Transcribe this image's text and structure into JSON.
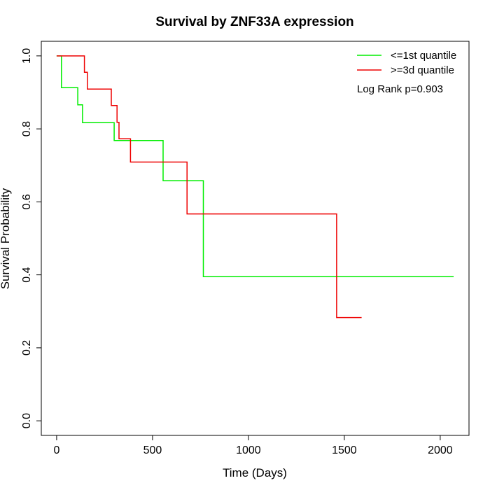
{
  "chart_data": {
    "type": "line",
    "step": true,
    "title": "Survival by ZNF33A expression",
    "xlabel": "Time (Days)",
    "ylabel": "Survival Probability",
    "xlim": [
      -80,
      2150
    ],
    "ylim": [
      -0.04,
      1.04
    ],
    "xticks": [
      0,
      500,
      1000,
      1500,
      2000
    ],
    "xtick_labels": [
      "0",
      "500",
      "1000",
      "1500",
      "2000"
    ],
    "yticks": [
      0.0,
      0.2,
      0.4,
      0.6,
      0.8,
      1.0
    ],
    "ytick_labels": [
      "0.0",
      "0.2",
      "0.4",
      "0.6",
      "0.8",
      "1.0"
    ],
    "legend_position": "top-right",
    "annotation": "Log Rank p=0.903",
    "series": [
      {
        "name": "<=1st quantile",
        "color": "#00ee00",
        "x": [
          0,
          25,
          25,
          110,
          110,
          135,
          135,
          300,
          300,
          555,
          555,
          765,
          765,
          2070
        ],
        "y": [
          1.0,
          1.0,
          0.913,
          0.913,
          0.866,
          0.866,
          0.817,
          0.817,
          0.768,
          0.768,
          0.658,
          0.658,
          0.395,
          0.395
        ]
      },
      {
        "name": ">=3d quantile",
        "color": "#ee0000",
        "x": [
          0,
          145,
          145,
          160,
          160,
          285,
          285,
          315,
          315,
          325,
          325,
          385,
          385,
          680,
          680,
          1460,
          1460,
          1590
        ],
        "y": [
          1.0,
          1.0,
          0.955,
          0.955,
          0.909,
          0.909,
          0.864,
          0.864,
          0.818,
          0.818,
          0.773,
          0.773,
          0.709,
          0.709,
          0.567,
          0.567,
          0.283,
          0.283
        ]
      }
    ]
  }
}
